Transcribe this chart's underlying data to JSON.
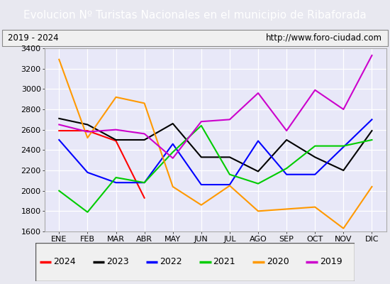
{
  "title": "Evolucion Nº Turistas Nacionales en el municipio de Ribaforada",
  "subtitle_left": "2019 - 2024",
  "subtitle_right": "http://www.foro-ciudad.com",
  "months": [
    "ENE",
    "FEB",
    "MAR",
    "ABR",
    "MAY",
    "JUN",
    "JUL",
    "AGO",
    "SEP",
    "OCT",
    "NOV",
    "DIC"
  ],
  "series": {
    "2024": [
      2590,
      2590,
      2490,
      1930,
      null,
      null,
      null,
      null,
      null,
      null,
      null,
      null
    ],
    "2023": [
      2710,
      2650,
      2500,
      2500,
      2660,
      2330,
      2330,
      2190,
      2500,
      2330,
      2200,
      2590
    ],
    "2022": [
      2500,
      2180,
      2080,
      2080,
      2460,
      2060,
      2060,
      2490,
      2160,
      2160,
      2430,
      2700
    ],
    "2021": [
      2000,
      1790,
      2130,
      2080,
      2380,
      2640,
      2160,
      2070,
      2220,
      2440,
      2440,
      2500
    ],
    "2020": [
      3290,
      2520,
      2920,
      2860,
      2040,
      1860,
      2050,
      1800,
      1820,
      1840,
      1630,
      2040
    ],
    "2019": [
      2650,
      2580,
      2600,
      2560,
      2320,
      2680,
      2700,
      2960,
      2590,
      2990,
      2800,
      3330
    ]
  },
  "colors": {
    "2024": "#ff0000",
    "2023": "#000000",
    "2022": "#0000ff",
    "2021": "#00cc00",
    "2020": "#ff9900",
    "2019": "#cc00cc"
  },
  "ylim": [
    1600,
    3400
  ],
  "yticks": [
    1600,
    1800,
    2000,
    2200,
    2400,
    2600,
    2800,
    3000,
    3200,
    3400
  ],
  "bg_color": "#e8e8f0",
  "plot_bg_color": "#e8e8f8",
  "title_bg_color": "#4a90d9",
  "title_color": "white",
  "grid_color": "white",
  "linewidth": 1.5,
  "title_fontsize": 11,
  "tick_fontsize": 8,
  "legend_fontsize": 9
}
